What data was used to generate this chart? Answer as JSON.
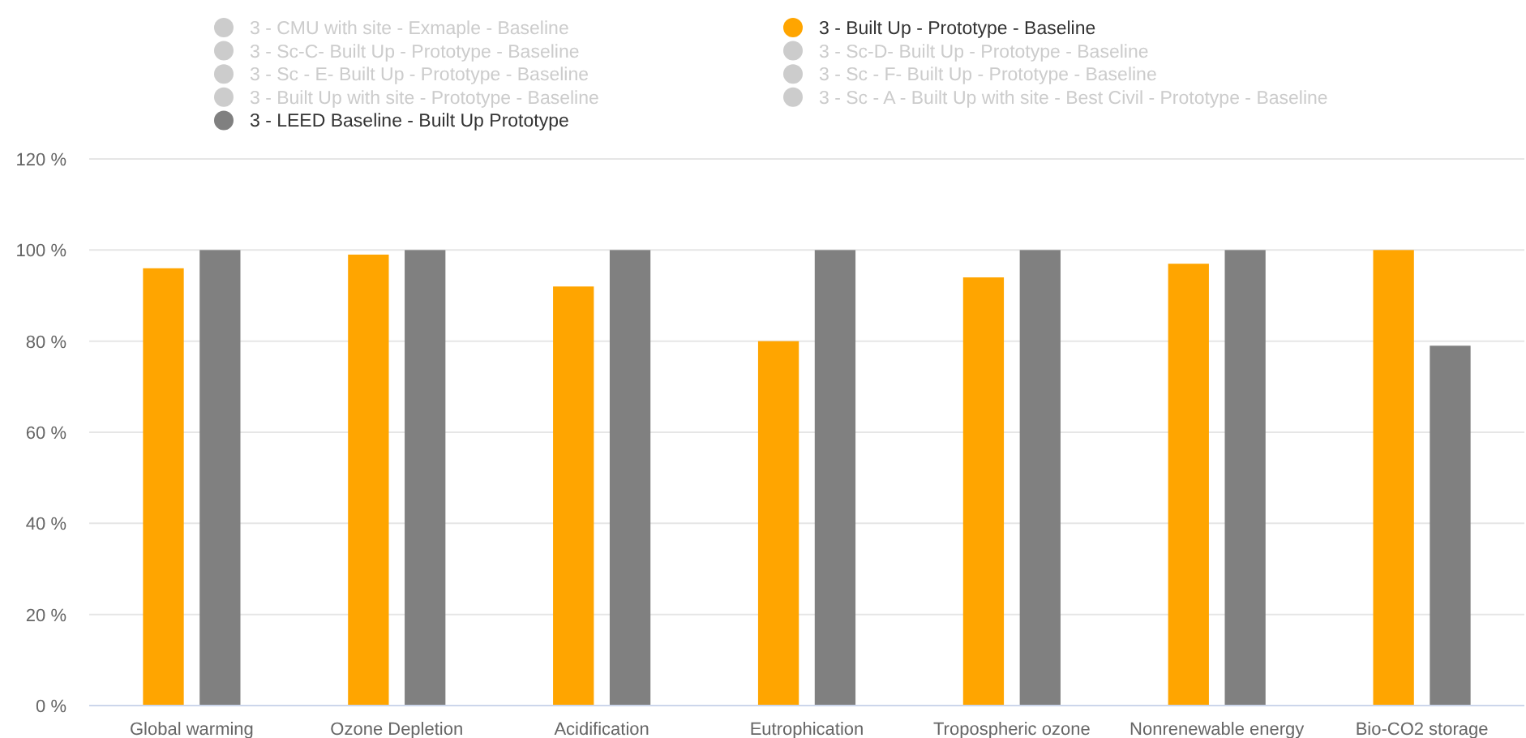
{
  "chart_data": {
    "type": "bar",
    "categories": [
      "Global warming",
      "Ozone Depletion",
      "Acidification",
      "Eutrophication",
      "Tropospheric ozone",
      "Nonrenewable energy",
      "Bio-CO2 storage"
    ],
    "series": [
      {
        "name": "3 - CMU with site - Exmaple - Baseline",
        "color": "#cccccc",
        "values": [
          null,
          null,
          null,
          null,
          null,
          null,
          null
        ]
      },
      {
        "name": "3 - Built Up - Prototype - Baseline",
        "color": "#ffa500",
        "values": [
          96,
          99,
          92,
          80,
          94,
          97,
          100
        ]
      },
      {
        "name": "3 - Sc-C- Built Up - Prototype - Baseline",
        "color": "#cccccc",
        "values": [
          null,
          null,
          null,
          null,
          null,
          null,
          null
        ]
      },
      {
        "name": "3 - Sc-D- Built Up - Prototype - Baseline",
        "color": "#cccccc",
        "values": [
          null,
          null,
          null,
          null,
          null,
          null,
          null
        ]
      },
      {
        "name": "3 - Sc - E- Built Up - Prototype - Baseline",
        "color": "#cccccc",
        "values": [
          null,
          null,
          null,
          null,
          null,
          null,
          null
        ]
      },
      {
        "name": "3 - Sc - F- Built Up - Prototype - Baseline",
        "color": "#cccccc",
        "values": [
          null,
          null,
          null,
          null,
          null,
          null,
          null
        ]
      },
      {
        "name": "3 - Built Up with site - Prototype - Baseline",
        "color": "#cccccc",
        "values": [
          null,
          null,
          null,
          null,
          null,
          null,
          null
        ]
      },
      {
        "name": "3 - Sc - A - Built Up with site - Best Civil - Prototype - Baseline",
        "color": "#cccccc",
        "values": [
          null,
          null,
          null,
          null,
          null,
          null,
          null
        ]
      },
      {
        "name": "3 - LEED Baseline - Built Up Prototype",
        "color": "#808080",
        "values": [
          100,
          100,
          100,
          100,
          100,
          100,
          79
        ]
      }
    ],
    "ylim": [
      0,
      120
    ],
    "yticks": [
      {
        "value": 0,
        "label": "0 %"
      },
      {
        "value": 20,
        "label": "20 %"
      },
      {
        "value": 40,
        "label": "40 %"
      },
      {
        "value": 60,
        "label": "60 %"
      },
      {
        "value": 80,
        "label": "80 %"
      },
      {
        "value": 100,
        "label": "100 %"
      },
      {
        "value": 120,
        "label": "120 %"
      }
    ],
    "grid": "y",
    "legend": "top"
  }
}
